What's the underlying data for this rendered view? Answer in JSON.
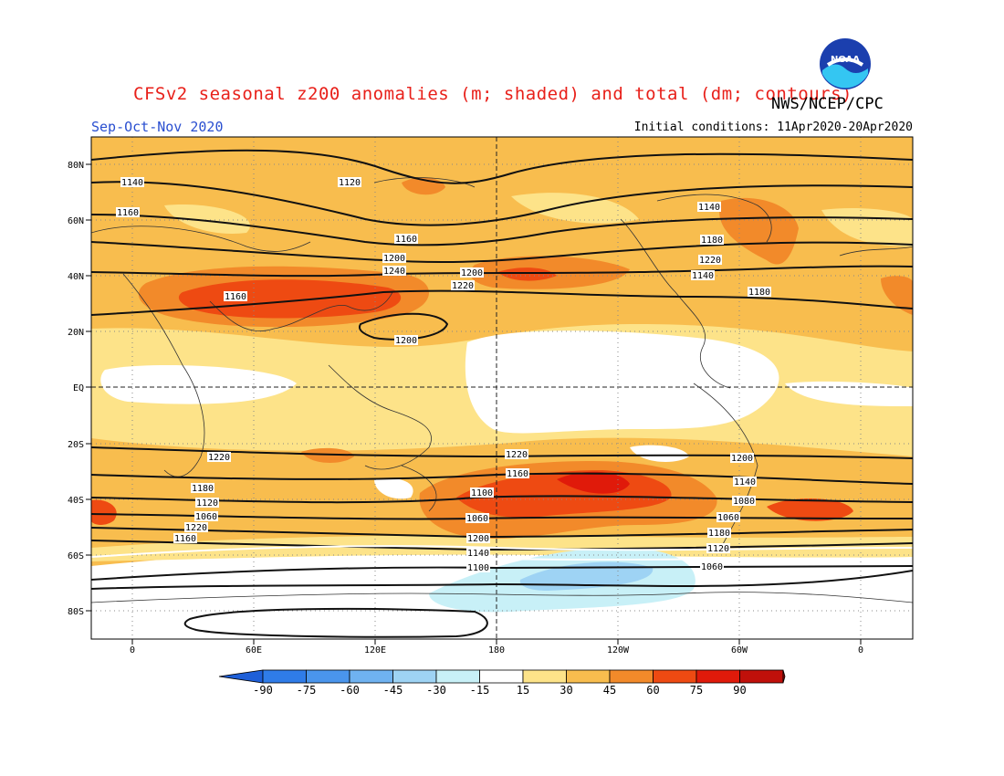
{
  "header": {
    "title": "CFSv2 seasonal z200 anomalies (m; shaded) and total (dm; contours)",
    "agency": "NWS/NCEP/CPC",
    "season": "Sep-Oct-Nov 2020",
    "initial_conditions": "Initial conditions: 11Apr2020-20Apr2020",
    "logo_text": "NOAA"
  },
  "axes": {
    "lat_labels": [
      "80N",
      "60N",
      "40N",
      "20N",
      "EQ",
      "20S",
      "40S",
      "60S",
      "80S"
    ],
    "lon_labels": [
      "0",
      "60E",
      "120E",
      "180",
      "120W",
      "60W",
      "0"
    ]
  },
  "colorbar": {
    "ticks": [
      "-90",
      "-75",
      "-60",
      "-45",
      "-30",
      "-15",
      "15",
      "30",
      "45",
      "60",
      "75",
      "90"
    ],
    "colors": [
      "#1e5fd8",
      "#2f7ce8",
      "#4a95ec",
      "#6fb2f0",
      "#9ed3f4",
      "#c8f0f7",
      "#ffffff",
      "#fde389",
      "#f8bd4e",
      "#f28a2a",
      "#ee4a12",
      "#e01a0a",
      "#c0100a",
      "#a00808"
    ]
  },
  "contours": {
    "labels": [
      "1140",
      "1120",
      "1160",
      "1140",
      "1160",
      "1180",
      "1200",
      "1220",
      "1240",
      "1200",
      "1220",
      "1140",
      "1160",
      "1180",
      "1200",
      "1220",
      "1220",
      "1200",
      "1180",
      "1160",
      "1140",
      "1120",
      "1100",
      "1080",
      "1060",
      "1060",
      "1060",
      "1220",
      "1200",
      "1180",
      "1160",
      "1140",
      "1120",
      "1100",
      "1060"
    ]
  }
}
